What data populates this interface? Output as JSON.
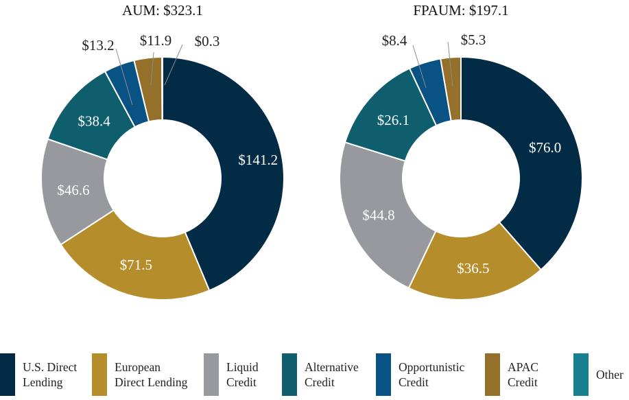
{
  "chart_data": [
    {
      "type": "pie",
      "variant": "donut",
      "title": "AUM: $323.1",
      "categories": [
        "U.S. Direct Lending",
        "European Direct Lending",
        "Liquid Credit",
        "Alternative Credit",
        "Opportunistic Credit",
        "APAC Credit",
        "Other"
      ],
      "values": [
        141.2,
        71.5,
        46.6,
        38.4,
        13.2,
        11.9,
        0.3
      ],
      "labels": [
        "$141.2",
        "$71.5",
        "$46.6",
        "$38.4",
        "$13.2",
        "$11.9",
        "$0.3"
      ]
    },
    {
      "type": "pie",
      "variant": "donut",
      "title": "FPAUM: $197.1",
      "categories": [
        "U.S. Direct Lending",
        "European Direct Lending",
        "Liquid Credit",
        "Alternative Credit",
        "Opportunistic Credit",
        "APAC Credit"
      ],
      "values": [
        76.0,
        36.5,
        44.8,
        26.1,
        8.4,
        5.3
      ],
      "labels": [
        "$76.0",
        "$36.5",
        "$44.8",
        "$26.1",
        "$8.4",
        "$5.3"
      ]
    }
  ],
  "legend": [
    {
      "key": "us",
      "label": "U.S. Direct\nLending",
      "color": "#022B45"
    },
    {
      "key": "eu",
      "label": "European\nDirect Lending",
      "color": "#B68D2B"
    },
    {
      "key": "liquid",
      "label": "Liquid\nCredit",
      "color": "#98999E"
    },
    {
      "key": "alt",
      "label": "Alternative\nCredit",
      "color": "#0F5E6D"
    },
    {
      "key": "opp",
      "label": "Opportunistic\nCredit",
      "color": "#085384"
    },
    {
      "key": "apac",
      "label": "APAC\nCredit",
      "color": "#95702A"
    },
    {
      "key": "other",
      "label": "Other",
      "color": "#178090"
    }
  ]
}
